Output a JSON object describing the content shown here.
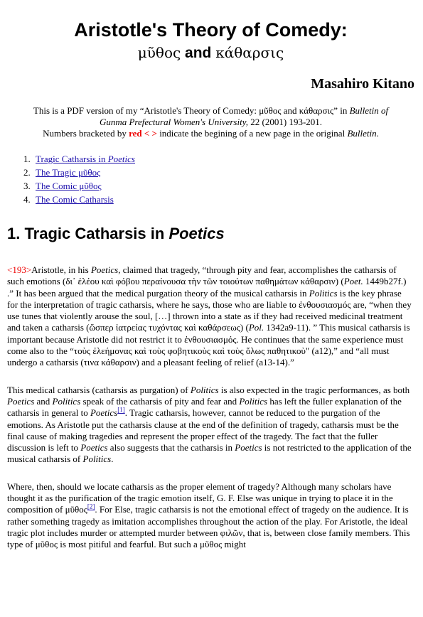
{
  "header": {
    "title": "Aristotle's Theory of Comedy:",
    "subtitle": [
      {
        "text": "μῦθος",
        "greek": true
      },
      {
        "text": " and "
      },
      {
        "text": "κάθαρσις",
        "greek": true
      }
    ],
    "author": "Masahiro Kitano"
  },
  "intro": [
    [
      {
        "text": "This is a PDF version of my “Aristotle's Theory of Comedy: μῦθος and κάθαρσις” in "
      },
      {
        "text": "Bulletin of Gunma Prefectural Women's University,",
        "italic": true
      },
      {
        "text": " 22 (2001) 193-201."
      }
    ],
    [
      {
        "text": "Numbers bracketed by "
      },
      {
        "text": "red < >",
        "color": "red",
        "bold": true
      },
      {
        "text": " indicate the begining of a new page in the original "
      },
      {
        "text": "Bulletin",
        "italic": true
      },
      {
        "text": "."
      }
    ]
  ],
  "toc": [
    {
      "number": "1.",
      "runs": [
        {
          "text": "Tragic Catharsis in "
        },
        {
          "text": "Poetics",
          "italic": true
        }
      ]
    },
    {
      "number": "2.",
      "runs": [
        {
          "text": "The Tragic μῦθος"
        }
      ]
    },
    {
      "number": "3.",
      "runs": [
        {
          "text": "The Comic μῦθος"
        }
      ]
    },
    {
      "number": "4.",
      "runs": [
        {
          "text": "The Comic Catharsis "
        }
      ]
    }
  ],
  "section": {
    "heading": [
      {
        "text": "1. Tragic Catharsis in "
      },
      {
        "text": "Poetics",
        "italic": true
      }
    ],
    "paragraphs": [
      [
        {
          "text": "<193>",
          "color": "red"
        },
        {
          "text": "Aristotle, in his "
        },
        {
          "text": "Poetics",
          "italic": true
        },
        {
          "text": ", claimed that tragedy, “through pity and fear, accomplishes the catharsis of such emotions (δι᾽ ἐλέου καὶ φόβου περαίνουσα τὴν τῶν τοιούτων παθημάτων κάθαρσιν) ("
        },
        {
          "text": "Poet.",
          "italic": true
        },
        {
          "text": " 1449b27f.) .” It has been argued that the medical purgation theory of the musical catharsis in "
        },
        {
          "text": "Politics",
          "italic": true
        },
        {
          "text": " is the key phrase for the interpretation of tragic catharsis, where he says, those who are liable to ἐνθουσιασμός are, “when they use tunes that violently arouse the soul, […] thrown into a state as if they had received medicinal treatment and taken a catharsis (ὥσπερ ἰατρείας τυχόντας καὶ καθάρσεως) ("
        },
        {
          "text": "Pol.",
          "italic": true
        },
        {
          "text": " 1342a9-11). ” This musical catharsis is important because Aristotle did not restrict it to ἐνθουσιασμός. He continues that the same experience must come also to the “τοὺς ἐλεήμονας καὶ τοὺς φοβητικοὺς καὶ τοὺς ὅλως παθητικοὺ\" (a12),” and “all must undergo a catharsis (τινα κάθαρσιν) and a pleasant feeling of relief (a13-14).”"
        }
      ],
      [
        {
          "text": "This medical catharsis (catharsis as purgation) of "
        },
        {
          "text": "Politics",
          "italic": true
        },
        {
          "text": " is also expected in the tragic performances, as both "
        },
        {
          "text": "Poetics",
          "italic": true
        },
        {
          "text": " and "
        },
        {
          "text": "Politics",
          "italic": true
        },
        {
          "text": " speak of the catharsis of pity and fear and "
        },
        {
          "text": "Politics",
          "italic": true
        },
        {
          "text": " has left the fuller explanation of the catharsis in general to "
        },
        {
          "text": "Poetics",
          "italic": true
        },
        {
          "text": "[1]",
          "link": true,
          "sup": true
        },
        {
          "text": ". Tragic catharsis, however, cannot be reduced to the purgation of the emotions. As Aristotle put the catharsis clause at the end of the definition of tragedy, catharsis must be the final cause of making tragedies and represent the proper effect of the tragedy. The fact that the fuller discussion is left to "
        },
        {
          "text": "Poetics",
          "italic": true
        },
        {
          "text": " also suggests that the catharsis in "
        },
        {
          "text": "Poetics",
          "italic": true
        },
        {
          "text": " is not restricted to the application of the musical catharsis of "
        },
        {
          "text": "Politics",
          "italic": true
        },
        {
          "text": "."
        }
      ],
      [
        {
          "text": "Where, then, should we locate catharsis as the proper element of tragedy? Although many scholars have thought it as the purification of the tragic emotion itself, G. F. Else was unique in trying to place it in the composition of μῦθος"
        },
        {
          "text": "[2]",
          "link": true,
          "sup": true
        },
        {
          "text": ". For Else, tragic catharsis is not the emotional effect of tragedy on the audience. It is rather something tragedy as imitation accomplishes throughout the action of the play. For Aristotle, the ideal tragic plot includes murder or attempted murder between φιλῶν, that is, between close family members. This type of μῦθος is most pitiful and fearful. But such a μῦθος might"
        }
      ]
    ]
  }
}
